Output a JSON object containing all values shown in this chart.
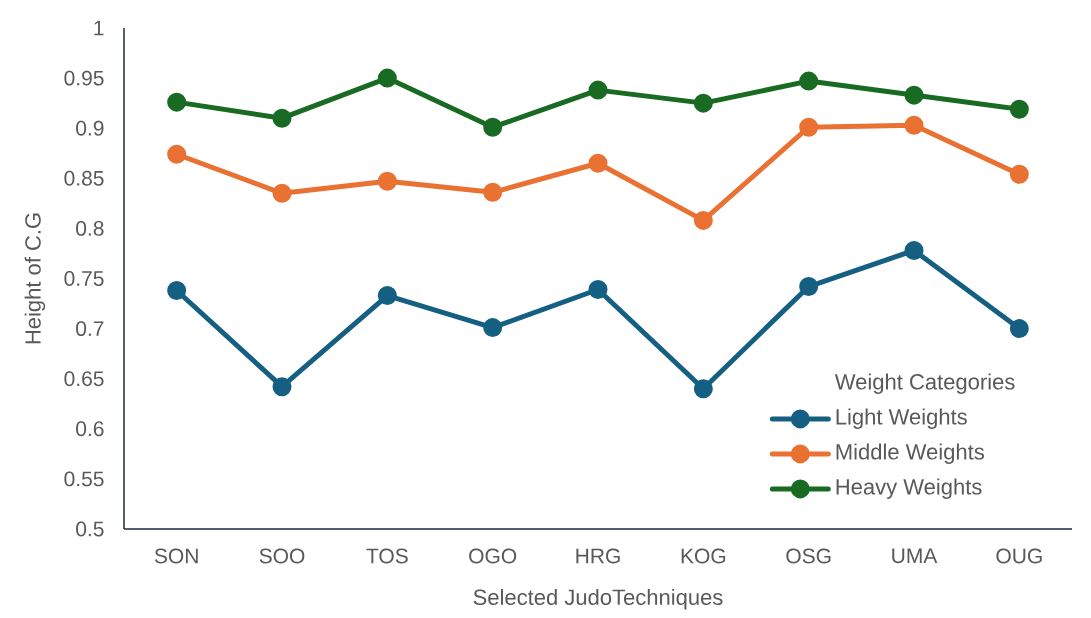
{
  "chart_data": {
    "type": "line",
    "xlabel": "Selected JudoTechniques",
    "ylabel": "Height of C.G",
    "legend_title": "Weight Categories",
    "categories": [
      "SON",
      "SOO",
      "TOS",
      "OGO",
      "HRG",
      "KOG",
      "OSG",
      "UMA",
      "OUG"
    ],
    "series": [
      {
        "name": "Light Weights",
        "color": "#156082",
        "values": [
          0.738,
          0.642,
          0.733,
          0.701,
          0.739,
          0.64,
          0.742,
          0.778,
          0.7
        ]
      },
      {
        "name": "Middle Weights",
        "color": "#e97132",
        "values": [
          0.874,
          0.835,
          0.847,
          0.836,
          0.865,
          0.808,
          0.901,
          0.903,
          0.854
        ]
      },
      {
        "name": "Heavy Weights",
        "color": "#196b24",
        "values": [
          0.926,
          0.91,
          0.95,
          0.901,
          0.938,
          0.925,
          0.947,
          0.933,
          0.919
        ]
      }
    ],
    "ylim": [
      0.5,
      1
    ],
    "yticks": [
      0.5,
      0.55,
      0.6,
      0.65,
      0.7,
      0.75,
      0.8,
      0.85,
      0.9,
      0.95,
      1
    ],
    "legend": "bottom right",
    "marker": "circle",
    "line_style": "solid"
  }
}
